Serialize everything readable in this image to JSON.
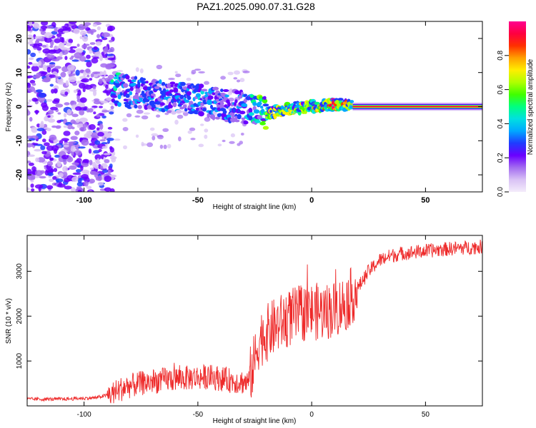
{
  "title": "PAZ1.2025.090.07.31.G28",
  "chart_data": [
    {
      "type": "heatmap",
      "xlabel": "Height of straight line (km)",
      "ylabel": "Frequency (Hz)",
      "xlim": [
        -125,
        75
      ],
      "ylim": [
        -25,
        25
      ],
      "xticks": [
        -100,
        -50,
        0,
        50
      ],
      "yticks": [
        -20,
        -10,
        0,
        10,
        20
      ],
      "colorbar": {
        "label": "Normalized spectral amplitude",
        "range": [
          0,
          1
        ],
        "ticks": [
          0.0,
          0.2,
          0.4,
          0.6,
          0.8
        ],
        "colormap": [
          "#f4ecfb",
          "#d9c2f5",
          "#a36cf0",
          "#6a00ff",
          "#1f3cff",
          "#00a8ff",
          "#00e0e0",
          "#00ff80",
          "#40ff00",
          "#b0ff00",
          "#ffee00",
          "#ffa000",
          "#ff3000",
          "#ff0040",
          "#ff0090"
        ]
      },
      "ridge": [
        {
          "x": -88,
          "f": 5.5,
          "a": 0.45
        },
        {
          "x": -80,
          "f": 4.5,
          "a": 0.35
        },
        {
          "x": -70,
          "f": 3.5,
          "a": 0.3
        },
        {
          "x": -60,
          "f": 2.5,
          "a": 0.3
        },
        {
          "x": -50,
          "f": 2.5,
          "a": 0.35
        },
        {
          "x": -40,
          "f": 0.5,
          "a": 0.3
        },
        {
          "x": -30,
          "f": 0.0,
          "a": 0.3
        },
        {
          "x": -20,
          "f": -2.0,
          "a": 0.6
        },
        {
          "x": -10,
          "f": -0.5,
          "a": 0.6
        },
        {
          "x": 0,
          "f": 0.0,
          "a": 0.6
        },
        {
          "x": 10,
          "f": 0.7,
          "a": 0.85
        },
        {
          "x": 17,
          "f": 0.5,
          "a": 0.7
        },
        {
          "x": 18,
          "f": 0.0,
          "a": 0.95
        },
        {
          "x": 75,
          "f": 0.0,
          "a": 0.95
        }
      ]
    },
    {
      "type": "line",
      "xlabel": "Height of straight line (km)",
      "ylabel": "SNR (10 * v/v)",
      "xlim": [
        -125,
        75
      ],
      "ylim": [
        0,
        3800
      ],
      "xticks": [
        -100,
        -50,
        0,
        50
      ],
      "yticks": [
        1000,
        2000,
        3000
      ],
      "color": "#ee2a2a",
      "x": [
        -125,
        -110,
        -95,
        -88,
        -82,
        -75,
        -65,
        -55,
        -45,
        -35,
        -28,
        -25,
        -23,
        -20,
        -18,
        -15,
        -12,
        -10,
        -8,
        -5,
        -2,
        0,
        5,
        10,
        15,
        20,
        25,
        30,
        35,
        40,
        50,
        60,
        75
      ],
      "y": [
        150,
        150,
        180,
        260,
        420,
        500,
        580,
        620,
        650,
        560,
        520,
        1000,
        1500,
        1600,
        1700,
        1800,
        1900,
        1950,
        2000,
        2050,
        2100,
        2100,
        2100,
        2150,
        2300,
        2600,
        3000,
        3250,
        3350,
        3400,
        3450,
        3500,
        3550
      ]
    }
  ]
}
